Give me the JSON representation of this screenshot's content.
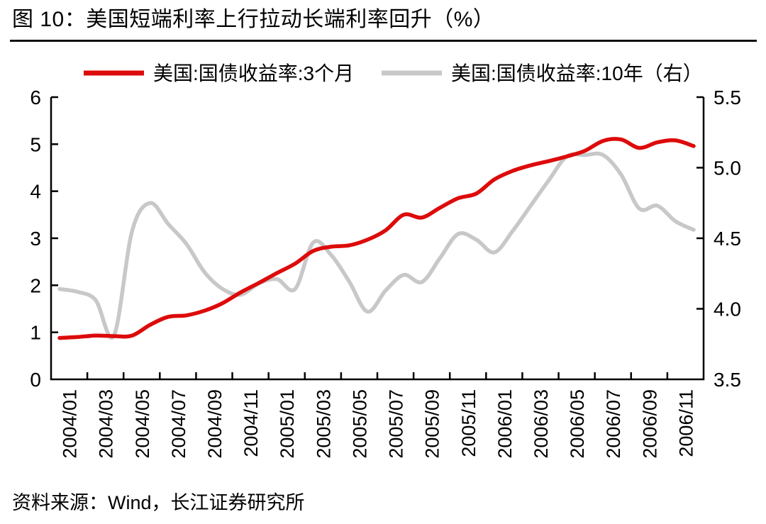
{
  "page": {
    "title": "图 10：美国短端利率上行拉动长端利率回升（%）",
    "source": "资料来源：Wind，长江证券研究所"
  },
  "colors": {
    "series_3m": "#dd0b0b",
    "series_10y": "#c8c8c8",
    "axis": "#000000",
    "text": "#000000"
  },
  "chart_data": {
    "type": "line",
    "title": "美国短端利率上行拉动长端利率回升（%）",
    "legend_position": "top",
    "grid": false,
    "x": [
      "2004/01",
      "2004/02",
      "2004/03",
      "2004/04",
      "2004/05",
      "2004/06",
      "2004/07",
      "2004/08",
      "2004/09",
      "2004/10",
      "2004/11",
      "2004/12",
      "2005/01",
      "2005/02",
      "2005/03",
      "2005/04",
      "2005/05",
      "2005/06",
      "2005/07",
      "2005/08",
      "2005/09",
      "2005/10",
      "2005/11",
      "2005/12",
      "2006/01",
      "2006/02",
      "2006/03",
      "2006/04",
      "2006/05",
      "2006/06",
      "2006/07",
      "2006/08",
      "2006/09",
      "2006/10",
      "2006/11",
      "2006/12"
    ],
    "x_tick_labels": [
      "2004/01",
      "2004/03",
      "2004/05",
      "2004/07",
      "2004/09",
      "2004/11",
      "2005/01",
      "2005/03",
      "2005/05",
      "2005/07",
      "2005/09",
      "2005/11",
      "2006/01",
      "2006/03",
      "2006/05",
      "2006/07",
      "2006/09",
      "2006/11"
    ],
    "series": [
      {
        "name": "美国:国债收益率:3个月",
        "axis": "left",
        "color_key": "series_3m",
        "values": [
          0.88,
          0.9,
          0.93,
          0.92,
          0.93,
          1.16,
          1.33,
          1.36,
          1.46,
          1.62,
          1.85,
          2.05,
          2.26,
          2.46,
          2.73,
          2.82,
          2.85,
          2.97,
          3.17,
          3.5,
          3.44,
          3.65,
          3.85,
          3.95,
          4.25,
          4.43,
          4.55,
          4.64,
          4.74,
          4.86,
          5.07,
          5.1,
          4.92,
          5.04,
          5.08,
          4.96
        ]
      },
      {
        "name": "美国:国债收益率:10年（右）",
        "axis": "right",
        "color_key": "series_10y",
        "values": [
          4.14,
          4.12,
          4.06,
          3.81,
          4.55,
          4.75,
          4.6,
          4.46,
          4.26,
          4.14,
          4.1,
          4.18,
          4.21,
          4.14,
          4.47,
          4.38,
          4.19,
          3.98,
          4.13,
          4.24,
          4.19,
          4.36,
          4.53,
          4.49,
          4.4,
          4.55,
          4.73,
          4.91,
          5.08,
          5.09,
          5.09,
          4.95,
          4.71,
          4.73,
          4.62,
          4.56
        ]
      }
    ],
    "left_axis": {
      "range": [
        0,
        6
      ],
      "tick_labels": [
        "0",
        "1",
        "2",
        "3",
        "4",
        "5",
        "6"
      ]
    },
    "right_axis": {
      "range": [
        3.5,
        5.5
      ],
      "tick_labels": [
        "3.5",
        "4.0",
        "4.5",
        "5.0",
        "5.5"
      ]
    }
  }
}
